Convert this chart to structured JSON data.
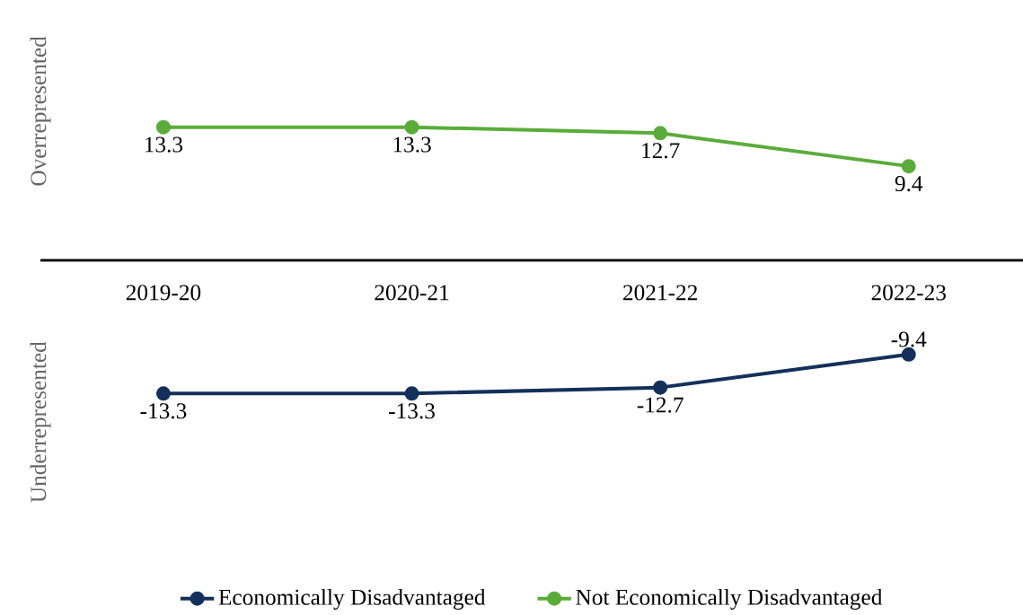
{
  "chart_data": {
    "type": "line",
    "categories": [
      "2019-20",
      "2020-21",
      "2021-22",
      "2022-23"
    ],
    "series": [
      {
        "name": "Economically Disadvantaged",
        "color": "#14305a",
        "values": [
          -13.3,
          -13.3,
          -12.7,
          -9.4
        ]
      },
      {
        "name": "Not Economically Disadvantaged",
        "color": "#5aac3a",
        "values": [
          13.3,
          13.3,
          12.7,
          9.4
        ]
      }
    ],
    "ylabel": "Overrepresented",
    "annotations": [
      "Underrepresented"
    ],
    "data_labels": true,
    "tick_labels": "x",
    "legend": "bottom",
    "grid": false,
    "marker": "circle",
    "line_style": "solid"
  }
}
